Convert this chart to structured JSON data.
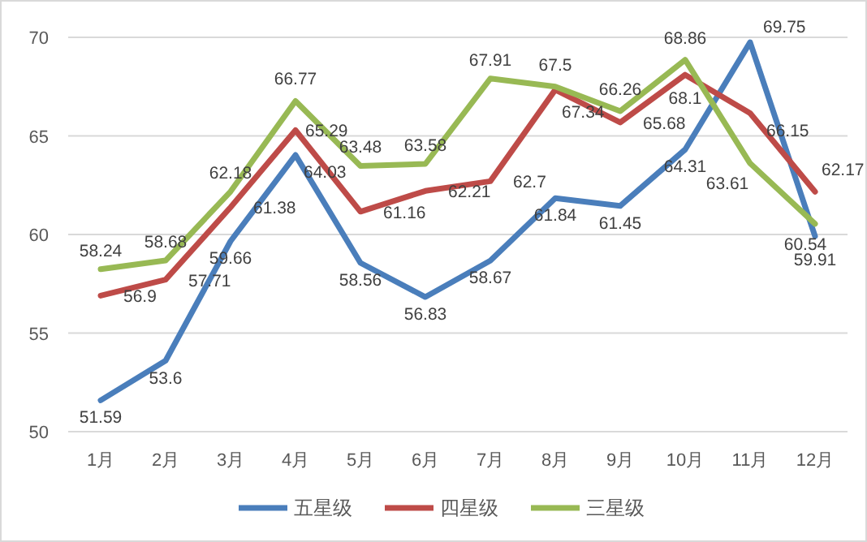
{
  "chart_data": {
    "type": "line",
    "categories": [
      "1月",
      "2月",
      "3月",
      "4月",
      "5月",
      "6月",
      "7月",
      "8月",
      "9月",
      "10月",
      "11月",
      "12月"
    ],
    "series": [
      {
        "name": "五星级",
        "color": "#4a7ebb",
        "values": [
          51.59,
          53.6,
          59.66,
          64.03,
          58.56,
          56.83,
          58.67,
          61.84,
          61.45,
          64.31,
          69.75,
          59.91
        ]
      },
      {
        "name": "四星级",
        "color": "#be4b48",
        "values": [
          56.9,
          57.71,
          61.38,
          65.29,
          61.16,
          62.21,
          62.7,
          67.34,
          65.68,
          68.1,
          66.15,
          62.17
        ]
      },
      {
        "name": "三星级",
        "color": "#98b954",
        "values": [
          58.24,
          58.68,
          62.18,
          66.77,
          63.48,
          63.58,
          67.91,
          67.5,
          66.26,
          68.86,
          63.61,
          60.54
        ]
      }
    ],
    "ylim": [
      50,
      70
    ],
    "yticks": [
      50,
      55,
      60,
      65,
      70
    ],
    "grid": "y",
    "legend": "bottom",
    "data_labels": true,
    "marker": "none",
    "line_style": "solid"
  }
}
